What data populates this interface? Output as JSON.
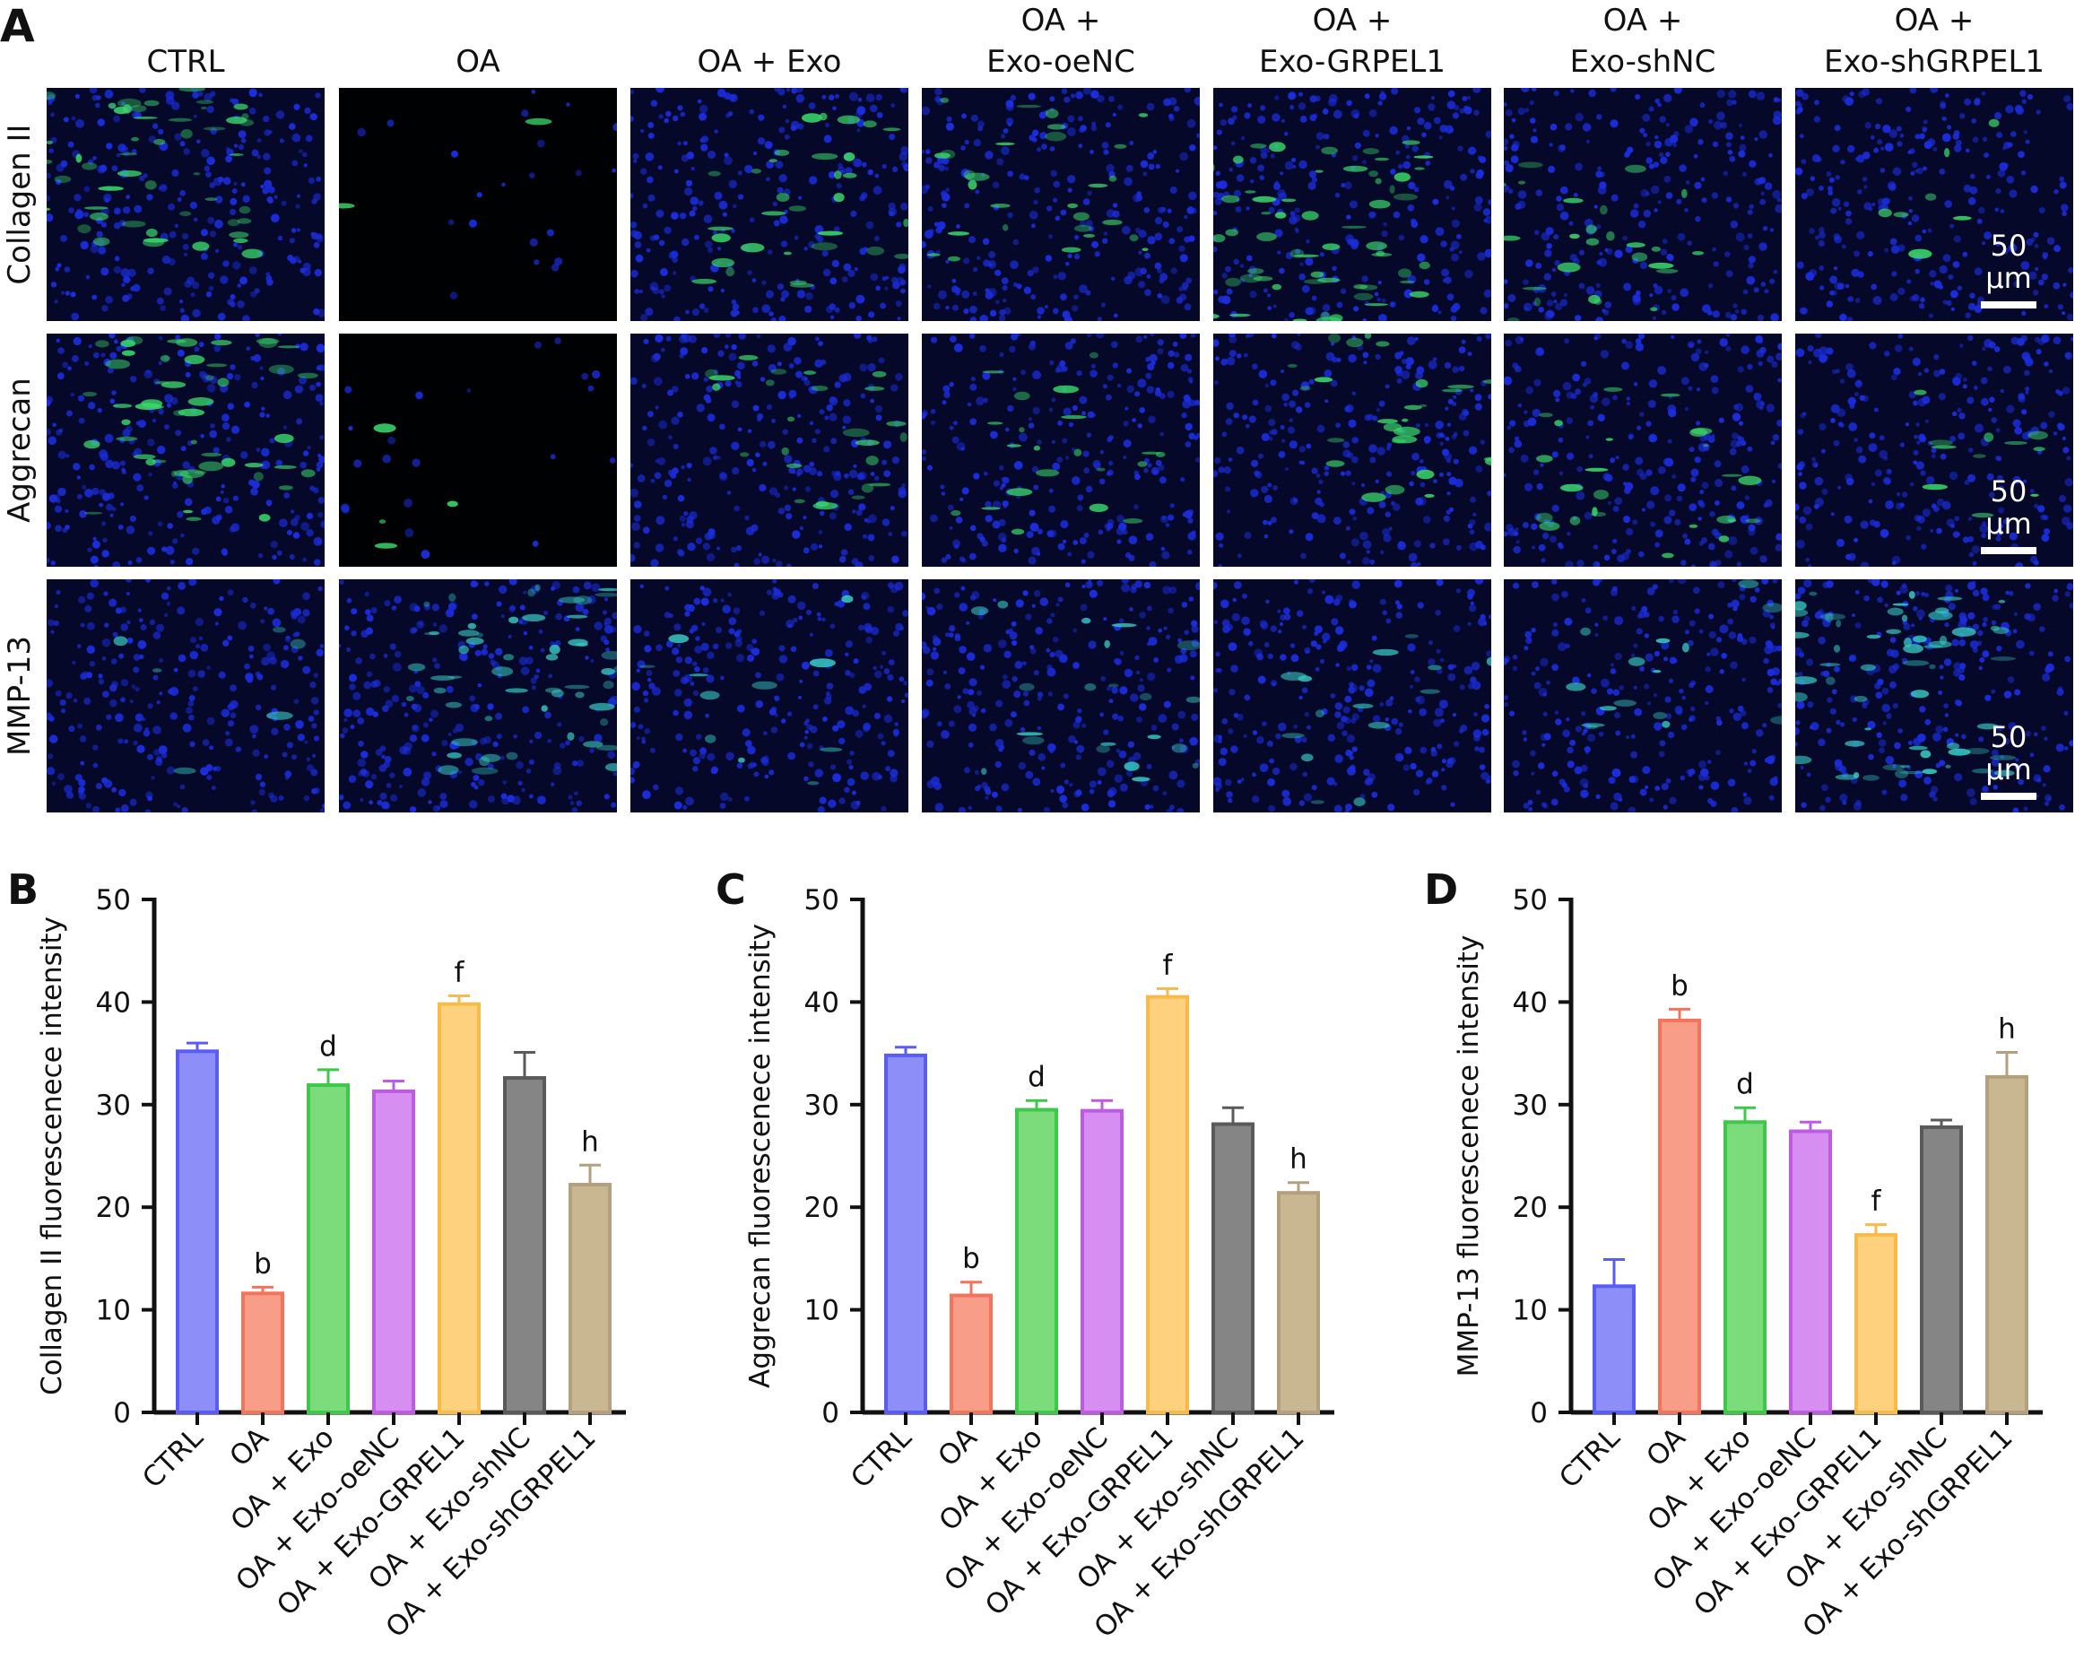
{
  "figure": {
    "panel_a": {
      "letter": "A",
      "columns": [
        {
          "line1": "",
          "line2": "CTRL"
        },
        {
          "line1": "",
          "line2": "OA"
        },
        {
          "line1": "",
          "line2": "OA + Exo"
        },
        {
          "line1": "OA +",
          "line2": "Exo-oeNC"
        },
        {
          "line1": "OA +",
          "line2": "Exo-GRPEL1"
        },
        {
          "line1": "OA +",
          "line2": "Exo-shNC"
        },
        {
          "line1": "OA +",
          "line2": "Exo-shGRPEL1"
        }
      ],
      "rows": [
        {
          "label": "Collagen II",
          "signal_color": "#3ad66a",
          "signal_levels": [
            0.8,
            0.03,
            0.45,
            0.4,
            0.85,
            0.5,
            0.1
          ]
        },
        {
          "label": "Aggrecan",
          "signal_color": "#3ad66a",
          "signal_levels": [
            0.75,
            0.05,
            0.35,
            0.3,
            0.5,
            0.35,
            0.15
          ]
        },
        {
          "label": "MMP-13",
          "signal_color": "#37c6c0",
          "signal_levels": [
            0.08,
            0.8,
            0.15,
            0.3,
            0.2,
            0.25,
            0.85
          ]
        }
      ],
      "nucleus_color": "#1b2ddc",
      "scale_bar": "50 μm"
    }
  },
  "chart_data": [
    {
      "panel": "B",
      "type": "bar",
      "categories": [
        "CTRL",
        "OA",
        "OA + Exo",
        "OA + Exo-oeNC",
        "OA + Exo-GRPEL1",
        "OA + Exo-shNC",
        "OA + Exo-shGRPEL1"
      ],
      "values": [
        35.2,
        11.6,
        31.9,
        31.3,
        39.8,
        32.6,
        22.2
      ],
      "errors": [
        0.8,
        0.6,
        1.5,
        1.0,
        0.8,
        2.5,
        1.9
      ],
      "annotations": [
        "",
        "b",
        "d",
        "",
        "f",
        "",
        "h"
      ],
      "ylabel": "Collagen II fluorescenece intensity",
      "ylim": [
        0,
        50
      ],
      "yticks": [
        0,
        10,
        20,
        30,
        40,
        50
      ]
    },
    {
      "panel": "C",
      "type": "bar",
      "categories": [
        "CTRL",
        "OA",
        "OA + Exo",
        "OA + Exo-oeNC",
        "OA + Exo-GRPEL1",
        "OA + Exo-shNC",
        "OA + Exo-shGRPEL1"
      ],
      "values": [
        34.8,
        11.4,
        29.5,
        29.4,
        40.5,
        28.1,
        21.4
      ],
      "errors": [
        0.8,
        1.3,
        0.9,
        1.0,
        0.8,
        1.6,
        1.0
      ],
      "annotations": [
        "",
        "b",
        "d",
        "",
        "f",
        "",
        "h"
      ],
      "ylabel": "Aggrecan fluorescenece intensity",
      "ylim": [
        0,
        50
      ],
      "yticks": [
        0,
        10,
        20,
        30,
        40,
        50
      ]
    },
    {
      "panel": "D",
      "type": "bar",
      "categories": [
        "CTRL",
        "OA",
        "OA + Exo",
        "OA + Exo-oeNC",
        "OA + Exo-GRPEL1",
        "OA + Exo-shNC",
        "OA + Exo-shGRPEL1"
      ],
      "values": [
        12.3,
        38.2,
        28.3,
        27.4,
        17.3,
        27.8,
        32.7
      ],
      "errors": [
        2.6,
        1.1,
        1.4,
        0.9,
        1.0,
        0.7,
        2.4
      ],
      "annotations": [
        "",
        "b",
        "d",
        "",
        "f",
        "",
        "h"
      ],
      "ylabel": "MMP-13 fluorescenece intensity",
      "ylim": [
        0,
        50
      ],
      "yticks": [
        0,
        10,
        20,
        30,
        40,
        50
      ]
    }
  ],
  "bar_colors": [
    {
      "stroke": "#5a5cf6",
      "fill": "#8d8ef8"
    },
    {
      "stroke": "#f4735c",
      "fill": "#f89d88"
    },
    {
      "stroke": "#3ec84a",
      "fill": "#7cdc7c"
    },
    {
      "stroke": "#be5ae4",
      "fill": "#d68ff0"
    },
    {
      "stroke": "#f8bb4a",
      "fill": "#fdd17d"
    },
    {
      "stroke": "#5a5a5a",
      "fill": "#858585"
    },
    {
      "stroke": "#b4a07e",
      "fill": "#c9b792"
    }
  ]
}
